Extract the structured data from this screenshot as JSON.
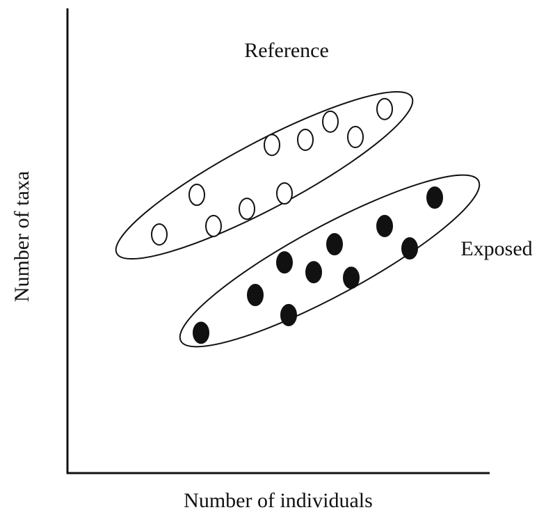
{
  "chart_data": {
    "type": "scatter",
    "x_label": "Number of individuals",
    "y_label": "Number of taxa",
    "xlim": [
      0,
      100
    ],
    "ylim": [
      0,
      100
    ],
    "series": [
      {
        "name": "Reference",
        "color": "#111111",
        "fill": "#ffffff",
        "x": [
          22,
          31,
          35,
          43,
          52,
          49,
          57,
          63,
          69,
          76
        ],
        "values": [
          51.2,
          59.7,
          53.0,
          56.7,
          60.0,
          70.4,
          71.5,
          75.4,
          72.1,
          78.1
        ]
      },
      {
        "name": "Exposed",
        "color": "#111111",
        "fill": "#111111",
        "x": [
          32,
          45,
          52,
          53,
          59,
          64,
          68,
          76,
          82,
          88
        ],
        "values": [
          30.1,
          38.2,
          45.2,
          33.9,
          43.1,
          49.1,
          41.9,
          53.0,
          48.2,
          59.1
        ]
      }
    ]
  }
}
